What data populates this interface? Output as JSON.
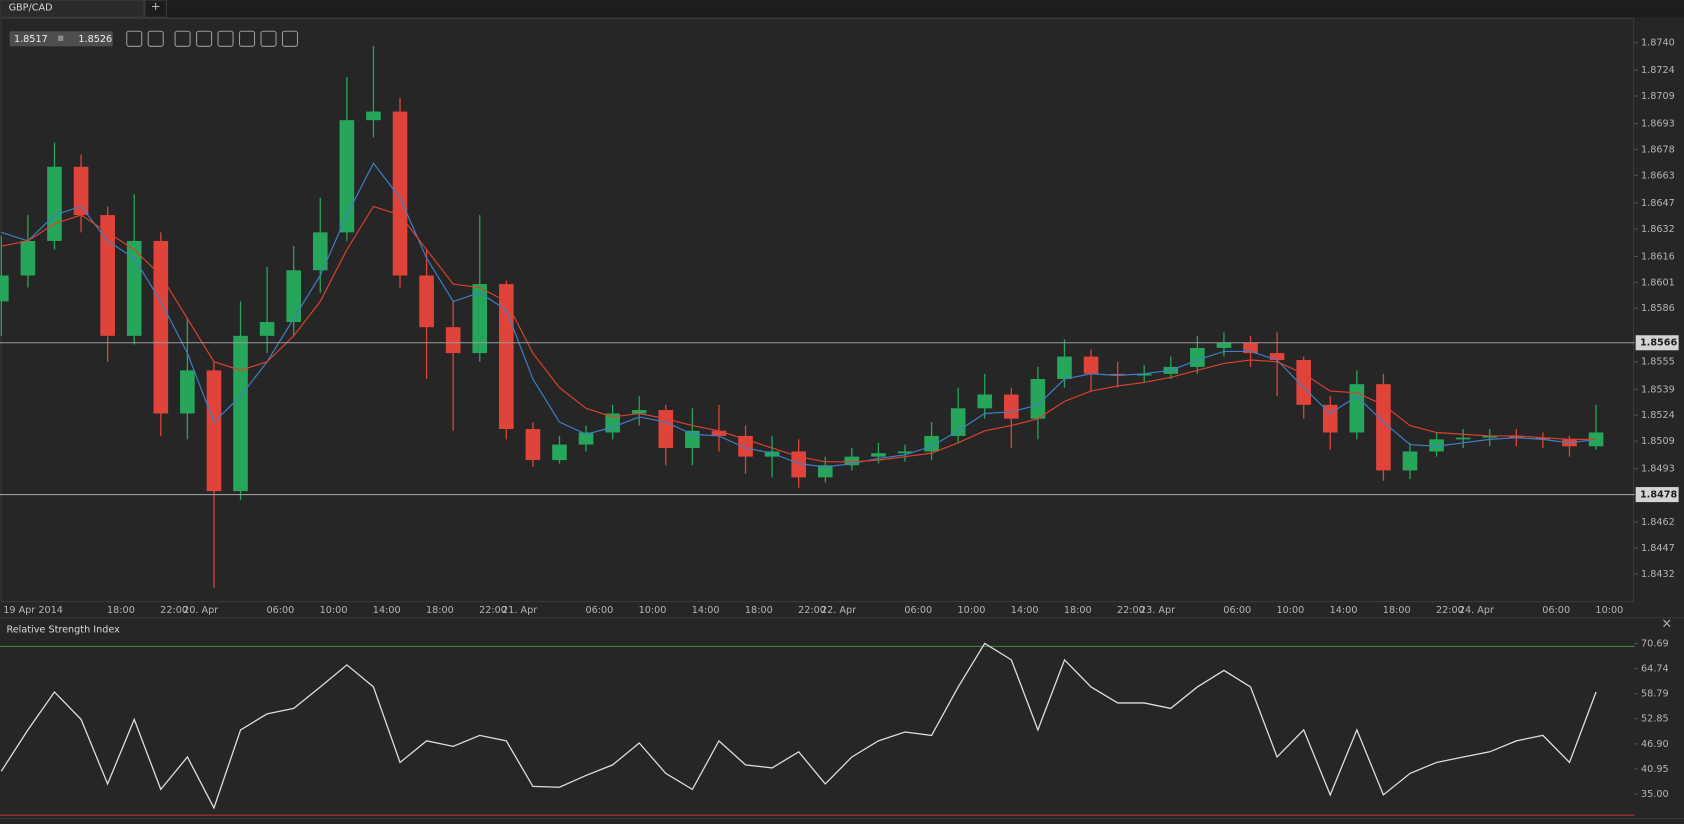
{
  "tabs": {
    "symbol": "GBP/CAD",
    "add": "+"
  },
  "quote": {
    "bid": 1.8517,
    "ask": 1.8526
  },
  "chart_data": [
    {
      "type": "candlestick",
      "x_start_label": "19 Apr 2014",
      "x": [
        9,
        11,
        13,
        15,
        17,
        19,
        21,
        23,
        25,
        27,
        29,
        31,
        33,
        35,
        37,
        39,
        41,
        43,
        45,
        47,
        49,
        51,
        53,
        55,
        57,
        59,
        61,
        63,
        65,
        67,
        69,
        71,
        73,
        75,
        77,
        79,
        81,
        83,
        85,
        87,
        89,
        91,
        93,
        95,
        97,
        99,
        101,
        103,
        105,
        107,
        109,
        111,
        113,
        115,
        117,
        119,
        121,
        123,
        125,
        127,
        129
      ],
      "open": [
        1.859,
        1.8605,
        1.8625,
        1.8668,
        1.864,
        1.857,
        1.8625,
        1.8525,
        1.855,
        1.848,
        1.857,
        1.8578,
        1.8608,
        1.863,
        1.8695,
        1.87,
        1.8605,
        1.8575,
        1.856,
        1.86,
        1.8516,
        1.8498,
        1.8507,
        1.8514,
        1.8525,
        1.8527,
        1.8505,
        1.8515,
        1.8512,
        1.85,
        1.8503,
        1.8488,
        1.8495,
        1.85,
        1.8502,
        1.8503,
        1.8512,
        1.8528,
        1.8536,
        1.8522,
        1.8545,
        1.8558,
        1.8548,
        1.8547,
        1.8548,
        1.8552,
        1.8563,
        1.8566,
        1.856,
        1.8556,
        1.853,
        1.8514,
        1.8542,
        1.8492,
        1.8503,
        1.851,
        1.8511,
        1.8512,
        1.8511,
        1.851,
        1.8506
      ],
      "high": [
        1.8628,
        1.864,
        1.8682,
        1.8675,
        1.8645,
        1.8652,
        1.863,
        1.858,
        1.8555,
        1.859,
        1.861,
        1.8622,
        1.865,
        1.872,
        1.8738,
        1.8708,
        1.862,
        1.859,
        1.864,
        1.8602,
        1.852,
        1.8512,
        1.8518,
        1.853,
        1.8535,
        1.853,
        1.8528,
        1.853,
        1.8518,
        1.8512,
        1.851,
        1.85,
        1.8505,
        1.8508,
        1.8507,
        1.852,
        1.854,
        1.8548,
        1.854,
        1.8552,
        1.8568,
        1.8562,
        1.8555,
        1.8553,
        1.8558,
        1.857,
        1.8572,
        1.857,
        1.8572,
        1.8558,
        1.8535,
        1.855,
        1.8548,
        1.8508,
        1.8514,
        1.8516,
        1.8516,
        1.8516,
        1.8514,
        1.8512,
        1.853
      ],
      "low": [
        1.857,
        1.8598,
        1.862,
        1.863,
        1.8555,
        1.8565,
        1.8512,
        1.851,
        1.8424,
        1.8475,
        1.856,
        1.857,
        1.8595,
        1.8625,
        1.8685,
        1.8598,
        1.8545,
        1.8515,
        1.8555,
        1.851,
        1.8494,
        1.8496,
        1.8503,
        1.851,
        1.8518,
        1.8495,
        1.8495,
        1.8503,
        1.849,
        1.8488,
        1.8482,
        1.8485,
        1.8492,
        1.8496,
        1.8497,
        1.8498,
        1.8508,
        1.8522,
        1.8505,
        1.851,
        1.854,
        1.8538,
        1.854,
        1.8543,
        1.8545,
        1.8548,
        1.8558,
        1.8552,
        1.8535,
        1.8522,
        1.8504,
        1.851,
        1.8486,
        1.8487,
        1.85,
        1.8505,
        1.8506,
        1.8506,
        1.8505,
        1.85,
        1.8504
      ],
      "close": [
        1.8605,
        1.8625,
        1.8668,
        1.864,
        1.857,
        1.8625,
        1.8525,
        1.855,
        1.848,
        1.857,
        1.8578,
        1.8608,
        1.863,
        1.8695,
        1.87,
        1.8605,
        1.8575,
        1.856,
        1.86,
        1.8516,
        1.8498,
        1.8507,
        1.8514,
        1.8525,
        1.8527,
        1.8505,
        1.8515,
        1.8512,
        1.85,
        1.8503,
        1.8488,
        1.8495,
        1.85,
        1.8502,
        1.8503,
        1.8512,
        1.8528,
        1.8536,
        1.8522,
        1.8545,
        1.8558,
        1.8548,
        1.8547,
        1.8548,
        1.8552,
        1.8563,
        1.8566,
        1.856,
        1.8556,
        1.853,
        1.8514,
        1.8542,
        1.8492,
        1.8503,
        1.851,
        1.8511,
        1.8512,
        1.8511,
        1.851,
        1.8506,
        1.8514
      ],
      "up_color": "#26a65b",
      "down_color": "#e0433a",
      "series": [
        {
          "color": "#3d7fc4",
          "values": [
            1.863,
            1.8625,
            1.864,
            1.8645,
            1.8625,
            1.8615,
            1.859,
            1.856,
            1.852,
            1.8535,
            1.8555,
            1.858,
            1.8605,
            1.864,
            1.867,
            1.865,
            1.8615,
            1.859,
            1.8595,
            1.8585,
            1.8545,
            1.852,
            1.8513,
            1.8517,
            1.8523,
            1.852,
            1.8513,
            1.8512,
            1.8505,
            1.8502,
            1.8496,
            1.8494,
            1.8496,
            1.8499,
            1.8501,
            1.8506,
            1.8515,
            1.8525,
            1.8526,
            1.853,
            1.8545,
            1.8548,
            1.8547,
            1.8548,
            1.855,
            1.8556,
            1.8561,
            1.8561,
            1.8556,
            1.854,
            1.8525,
            1.8535,
            1.852,
            1.8507,
            1.8506,
            1.8508,
            1.851,
            1.8511,
            1.851,
            1.8508,
            1.851
          ]
        },
        {
          "color": "#d9412e",
          "values": [
            1.8622,
            1.8625,
            1.8635,
            1.864,
            1.863,
            1.862,
            1.8605,
            1.858,
            1.8555,
            1.855,
            1.8555,
            1.857,
            1.859,
            1.862,
            1.8645,
            1.864,
            1.862,
            1.86,
            1.8598,
            1.859,
            1.856,
            1.854,
            1.8528,
            1.8523,
            1.8525,
            1.8522,
            1.8518,
            1.8515,
            1.851,
            1.8505,
            1.85,
            1.8497,
            1.8497,
            1.8498,
            1.85,
            1.8502,
            1.8508,
            1.8515,
            1.8518,
            1.8522,
            1.8532,
            1.8538,
            1.8541,
            1.8543,
            1.8546,
            1.855,
            1.8554,
            1.8556,
            1.8555,
            1.8548,
            1.8538,
            1.8537,
            1.853,
            1.8518,
            1.8514,
            1.8513,
            1.8512,
            1.8512,
            1.8511,
            1.851,
            1.851
          ]
        }
      ],
      "hlines": [
        {
          "value": 1.8566,
          "color": "#9a9a9a"
        },
        {
          "value": 1.8478,
          "color": "#9a9a9a"
        }
      ],
      "xlim": [
        8.9,
        131.9
      ],
      "xticks": [
        {
          "value": 18,
          "label": "18:00"
        },
        {
          "value": 22,
          "label": "22:00"
        },
        {
          "value": 24,
          "label": "20. Apr"
        },
        {
          "value": 30,
          "label": "06:00"
        },
        {
          "value": 34,
          "label": "10:00"
        },
        {
          "value": 38,
          "label": "14:00"
        },
        {
          "value": 42,
          "label": "18:00"
        },
        {
          "value": 46,
          "label": "22:00"
        },
        {
          "value": 48,
          "label": "21. Apr"
        },
        {
          "value": 54,
          "label": "06:00"
        },
        {
          "value": 58,
          "label": "10:00"
        },
        {
          "value": 62,
          "label": "14:00"
        },
        {
          "value": 66,
          "label": "18:00"
        },
        {
          "value": 70,
          "label": "22:00"
        },
        {
          "value": 72,
          "label": "22. Apr"
        },
        {
          "value": 78,
          "label": "06:00"
        },
        {
          "value": 82,
          "label": "10:00"
        },
        {
          "value": 86,
          "label": "14:00"
        },
        {
          "value": 90,
          "label": "18:00"
        },
        {
          "value": 94,
          "label": "22:00"
        },
        {
          "value": 96,
          "label": "23. Apr"
        },
        {
          "value": 102,
          "label": "06:00"
        },
        {
          "value": 106,
          "label": "10:00"
        },
        {
          "value": 110,
          "label": "14:00"
        },
        {
          "value": 114,
          "label": "18:00"
        },
        {
          "value": 118,
          "label": "22:00"
        },
        {
          "value": 120,
          "label": "24. Apr"
        },
        {
          "value": 126,
          "label": "06:00"
        },
        {
          "value": 130,
          "label": "10:00"
        }
      ],
      "ylim": [
        1.8416,
        1.8754
      ],
      "yticks": [
        {
          "value": 1.874,
          "label": "1.8740"
        },
        1.8724,
        1.8709,
        1.8693,
        1.8678,
        1.8663,
        1.8647,
        1.8632,
        1.8616,
        1.8601,
        1.8586,
        1.8555,
        1.8539,
        1.8524,
        1.8509,
        1.8493,
        1.8462,
        1.8447,
        1.8432
      ],
      "grid": false
    },
    {
      "type": "line",
      "title": "Relative Strength Index",
      "close_icon": "×",
      "color": "#dedede",
      "x": [
        9,
        11,
        13,
        15,
        17,
        19,
        21,
        23,
        25,
        27,
        29,
        31,
        33,
        35,
        37,
        39,
        41,
        43,
        45,
        47,
        49,
        51,
        53,
        55,
        57,
        59,
        61,
        63,
        65,
        67,
        69,
        71,
        73,
        75,
        77,
        79,
        81,
        83,
        85,
        87,
        89,
        91,
        93,
        95,
        97,
        99,
        101,
        103,
        105,
        107,
        109,
        111,
        113,
        115,
        117,
        119,
        121,
        123,
        125,
        127,
        129
      ],
      "values": [
        40.4,
        50.2,
        59.2,
        52.7,
        37.4,
        52.7,
        36.1,
        43.8,
        31.7,
        50.2,
        54.0,
        55.3,
        60.4,
        65.6,
        60.4,
        42.5,
        47.6,
        46.3,
        48.9,
        47.6,
        36.8,
        36.6,
        39.4,
        41.9,
        47.1,
        39.9,
        36.1,
        47.6,
        41.9,
        41.2,
        45.0,
        37.4,
        43.8,
        47.6,
        49.7,
        48.9,
        60.4,
        70.7,
        66.8,
        50.2,
        66.8,
        60.4,
        56.6,
        56.6,
        55.3,
        60.4,
        64.3,
        60.4,
        43.8,
        50.2,
        34.8,
        50.2,
        34.8,
        39.9,
        42.5,
        43.8,
        45.0,
        47.6,
        48.9,
        42.5,
        59.2
      ],
      "levels": [
        {
          "value": 70,
          "color": "#3f8f3f"
        },
        {
          "value": 30,
          "color": "#c0392b"
        }
      ],
      "xlim": [
        8.9,
        131.9
      ],
      "ylim": [
        29.2,
        76.3
      ],
      "yticks": [
        70.69,
        64.74,
        58.79,
        52.85,
        {
          "value": 46.9,
          "label": "46.90"
        },
        40.95,
        {
          "value": 35,
          "label": "35.00"
        }
      ],
      "grid": false
    }
  ]
}
